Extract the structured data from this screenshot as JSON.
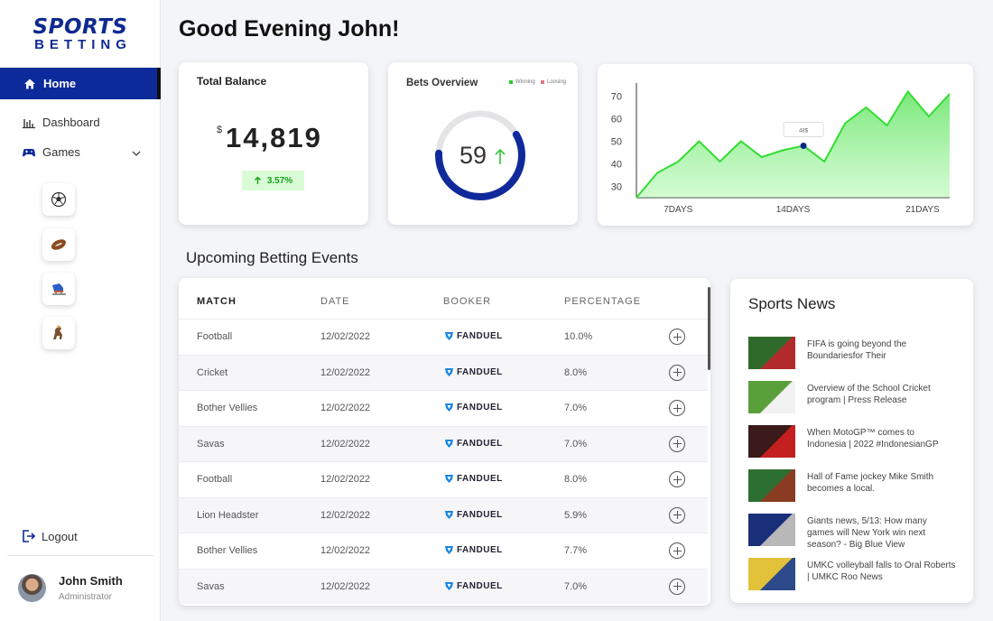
{
  "brand": {
    "line1": "SPORTS",
    "line2": "BETTING"
  },
  "sidebar": {
    "home": "Home",
    "dashboard": "Dashboard",
    "games": "Games",
    "game_icons": [
      "soccer-ball-icon",
      "football-icon",
      "skating-icon",
      "horse-racing-icon"
    ],
    "logout": "Logout",
    "user": {
      "name": "John Smith",
      "role": "Administrator"
    }
  },
  "greeting": "Good Evening John!",
  "balance": {
    "title": "Total Balance",
    "currency": "$",
    "value": "14,819",
    "change": "3.57%"
  },
  "bets_overview": {
    "title": "Bets Overview",
    "legend": [
      {
        "label": "Winning",
        "color": "#2ecc2e"
      },
      {
        "label": "Loosing",
        "color": "#e07a7a"
      }
    ],
    "value": "59",
    "progress": 0.59,
    "ring_color": "#102a9b"
  },
  "chart_data": {
    "type": "area",
    "x": [
      0,
      1,
      2,
      3,
      4,
      5,
      6,
      7,
      8,
      9,
      10,
      11,
      12,
      13,
      14,
      15
    ],
    "values": [
      25,
      36,
      41,
      50,
      41,
      50,
      43,
      46,
      48,
      41,
      58,
      65,
      57,
      72,
      61,
      71
    ],
    "xticks": [
      "7DAYS",
      "14DAYS",
      "21DAYS"
    ],
    "yticks": [
      30,
      40,
      50,
      60,
      70
    ],
    "ylim": [
      25,
      75
    ],
    "tooltip": {
      "label": "48$",
      "value": 48
    },
    "color": "#33dd33"
  },
  "events": {
    "title": "Upcoming Betting Events",
    "columns": [
      "MATCH",
      "DATE",
      "BOOKER",
      "PERCENTAGE"
    ],
    "rows": [
      {
        "match": "Football",
        "date": "12/02/2022",
        "booker": "FANDUEL",
        "pct": "10.0%"
      },
      {
        "match": "Cricket",
        "date": "12/02/2022",
        "booker": "FANDUEL",
        "pct": "8.0%"
      },
      {
        "match": "Bother Vellies",
        "date": "12/02/2022",
        "booker": "FANDUEL",
        "pct": "7.0%"
      },
      {
        "match": "Savas",
        "date": "12/02/2022",
        "booker": "FANDUEL",
        "pct": "7.0%"
      },
      {
        "match": "Football",
        "date": "12/02/2022",
        "booker": "FANDUEL",
        "pct": "8.0%"
      },
      {
        "match": "Lion Headster",
        "date": "12/02/2022",
        "booker": "FANDUEL",
        "pct": "5.9%"
      },
      {
        "match": "Bother Vellies",
        "date": "12/02/2022",
        "booker": "FANDUEL",
        "pct": "7.7%"
      },
      {
        "match": "Savas",
        "date": "12/02/2022",
        "booker": "FANDUEL",
        "pct": "7.0%"
      }
    ]
  },
  "news": {
    "title": "Sports News",
    "items": [
      {
        "text": "FIFA is going beyond the Boundariesfor Their",
        "colors": [
          "#2f6a2a",
          "#b32a2a"
        ]
      },
      {
        "text": "Overview of the School Cricket program | Press Release",
        "colors": [
          "#5aa03a",
          "#f2f2f2"
        ]
      },
      {
        "text": "When MotoGP™ comes to Indonesia | 2022 #IndonesianGP",
        "colors": [
          "#3a1a1a",
          "#c42020"
        ]
      },
      {
        "text": "Hall of Fame jockey Mike Smith becomes a local.",
        "colors": [
          "#2d6e32",
          "#8a3b22"
        ]
      },
      {
        "text": "Giants news, 5/13: How many games will New York win next season? - Big Blue View",
        "colors": [
          "#1a2f7a",
          "#b8b8b8"
        ]
      },
      {
        "text": "UMKC volleyball falls to Oral Roberts | UMKC Roo News",
        "colors": [
          "#e2c23a",
          "#2d4a8a"
        ]
      }
    ]
  }
}
